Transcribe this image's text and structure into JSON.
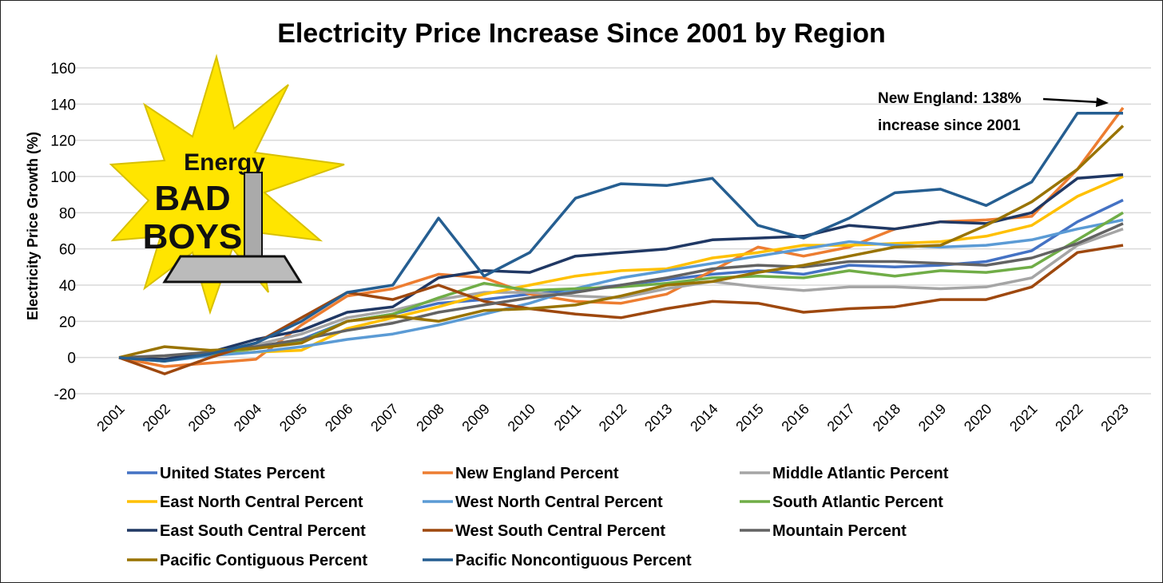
{
  "chart_data": {
    "type": "line",
    "title": "Electricity Price Increase Since 2001 by Region",
    "xlabel": "",
    "ylabel": "Electricity Price Growth (%)",
    "ylim": [
      -20,
      160
    ],
    "yticks": [
      -20,
      0,
      20,
      40,
      60,
      80,
      100,
      120,
      140,
      160
    ],
    "grid": true,
    "legend_position": "bottom",
    "x": [
      "2001",
      "2002",
      "2003",
      "2004",
      "2005",
      "2006",
      "2007",
      "2008",
      "2009",
      "2010",
      "2011",
      "2012",
      "2013",
      "2014",
      "2015",
      "2016",
      "2017",
      "2018",
      "2019",
      "2020",
      "2021",
      "2022",
      "2023"
    ],
    "series": [
      {
        "name": "United States Percent",
        "color": "#4472C4",
        "values": [
          0,
          -1,
          2,
          5,
          10,
          20,
          24,
          30,
          32,
          35,
          37,
          40,
          43,
          46,
          48,
          46,
          51,
          50,
          51,
          53,
          59,
          75,
          87
        ]
      },
      {
        "name": "New England Percent",
        "color": "#ED7D31",
        "values": [
          0,
          -5,
          -3,
          -1,
          18,
          34,
          38,
          46,
          44,
          35,
          31,
          30,
          35,
          48,
          61,
          56,
          61,
          71,
          75,
          76,
          78,
          104,
          138
        ]
      },
      {
        "name": "Middle Atlantic Percent",
        "color": "#A5A5A5",
        "values": [
          0,
          0,
          3,
          7,
          13,
          22,
          26,
          32,
          36,
          36,
          34,
          33,
          38,
          42,
          39,
          37,
          39,
          39,
          38,
          39,
          44,
          62,
          71
        ]
      },
      {
        "name": "East North Central Percent",
        "color": "#FFC000",
        "values": [
          0,
          -1,
          2,
          3,
          4,
          16,
          22,
          28,
          35,
          40,
          45,
          48,
          49,
          55,
          58,
          62,
          62,
          63,
          64,
          67,
          73,
          89,
          100
        ]
      },
      {
        "name": "West North Central Percent",
        "color": "#5B9BD5",
        "values": [
          0,
          -2,
          1,
          3,
          6,
          10,
          13,
          18,
          24,
          30,
          38,
          44,
          48,
          52,
          56,
          60,
          64,
          62,
          61,
          62,
          65,
          71,
          76
        ]
      },
      {
        "name": "South Atlantic Percent",
        "color": "#70AD47",
        "values": [
          0,
          -2,
          2,
          5,
          9,
          20,
          24,
          33,
          41,
          37,
          38,
          39,
          41,
          44,
          45,
          44,
          48,
          45,
          48,
          47,
          50,
          65,
          80
        ]
      },
      {
        "name": "East South Central Percent",
        "color": "#203864",
        "values": [
          0,
          -1,
          3,
          10,
          15,
          25,
          28,
          44,
          48,
          47,
          56,
          58,
          60,
          65,
          66,
          67,
          73,
          71,
          75,
          74,
          80,
          99,
          101
        ]
      },
      {
        "name": "West South Central Percent",
        "color": "#9E480E",
        "values": [
          0,
          -9,
          0,
          8,
          22,
          36,
          32,
          40,
          31,
          27,
          24,
          22,
          27,
          31,
          30,
          25,
          27,
          28,
          32,
          32,
          39,
          58,
          62
        ]
      },
      {
        "name": "Mountain Percent",
        "color": "#636363",
        "values": [
          0,
          1,
          3,
          6,
          10,
          15,
          19,
          25,
          29,
          33,
          36,
          40,
          44,
          49,
          51,
          50,
          53,
          53,
          52,
          51,
          55,
          63,
          74
        ]
      },
      {
        "name": "Pacific Contiguous Percent",
        "color": "#997300",
        "values": [
          0,
          6,
          4,
          5,
          8,
          20,
          23,
          20,
          26,
          27,
          29,
          34,
          40,
          42,
          47,
          51,
          56,
          61,
          62,
          73,
          86,
          104,
          128
        ]
      },
      {
        "name": "Pacific Noncontiguous Percent",
        "color": "#255E91",
        "values": [
          0,
          -2,
          2,
          8,
          20,
          36,
          40,
          77,
          45,
          58,
          88,
          96,
          95,
          99,
          73,
          66,
          77,
          91,
          93,
          84,
          97,
          135,
          135
        ]
      }
    ],
    "annotations": [
      "New England: 138%",
      "increase since 2001"
    ]
  },
  "logo": {
    "line1": "Energy",
    "line2": "BAD",
    "line3": "BOYS"
  }
}
